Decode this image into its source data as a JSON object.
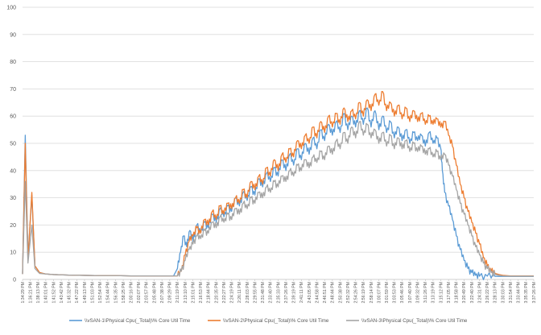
{
  "chart_data": {
    "type": "line",
    "grid": true,
    "ylim": [
      0,
      100
    ],
    "yticks": [
      0,
      10,
      20,
      30,
      40,
      50,
      60,
      70,
      80,
      90,
      100
    ],
    "legend_position": "bottom",
    "x_tick_labels": [
      "1:34:29 PM",
      "1:36:21 PM",
      "1:38:13 PM",
      "1:40:01 PM",
      "1:41:52 PM",
      "1:43:42 PM",
      "1:45:32 PM",
      "1:47:22 PM",
      "1:49:13 PM",
      "1:51:03 PM",
      "1:52:54 PM",
      "1:54:44 PM",
      "1:56:35 PM",
      "1:58:25 PM",
      "2:00:16 PM",
      "2:02:07 PM",
      "2:03:57 PM",
      "2:05:48 PM",
      "2:07:38 PM",
      "2:09:29 PM",
      "2:11:19 PM",
      "2:13:10 PM",
      "2:15:01 PM",
      "2:16:53 PM",
      "2:18:44 PM",
      "2:20:35 PM",
      "2:22:27 PM",
      "2:24:19 PM",
      "2:26:11 PM",
      "2:28:03 PM",
      "2:29:55 PM",
      "2:31:48 PM",
      "2:33:40 PM",
      "2:35:33 PM",
      "2:37:26 PM",
      "2:39:19 PM",
      "2:41:11 PM",
      "2:43:05 PM",
      "2:44:58 PM",
      "2:46:51 PM",
      "2:48:44 PM",
      "2:50:38 PM",
      "2:52:32 PM",
      "2:54:26 PM",
      "2:56:19 PM",
      "2:58:14 PM",
      "3:00:07 PM",
      "3:01:59 PM",
      "3:03:53 PM",
      "3:05:46 PM",
      "3:07:40 PM",
      "3:09:32 PM",
      "3:11:26 PM",
      "3:13:19 PM",
      "3:15:12 PM",
      "3:17:05 PM",
      "3:18:58 PM",
      "3:20:49 PM",
      "3:22:40 PM",
      "3:24:31 PM",
      "3:26:22 PM",
      "3:28:13 PM",
      "3:30:03 PM",
      "3:31:54 PM",
      "3:33:44 PM",
      "3:35:35 PM",
      "3:37:26 PM"
    ],
    "series": [
      {
        "name": "\\\\vSAN-1\\Physical Cpu(_Total)\\% Core Util Time",
        "color": "#5B9BD5",
        "points": [
          [
            0,
            2
          ],
          [
            0.35,
            53
          ],
          [
            0.7,
            8
          ],
          [
            1.2,
            31
          ],
          [
            1.6,
            5
          ],
          [
            2.2,
            2.5
          ],
          [
            3,
            2
          ],
          [
            4,
            1.8
          ],
          [
            6,
            1.6
          ],
          [
            8,
            1.5
          ],
          [
            10,
            1.4
          ],
          [
            12,
            1.4
          ],
          [
            14,
            1.3
          ],
          [
            16,
            1.3
          ],
          [
            18,
            1.3
          ],
          [
            19.5,
            1.3
          ],
          [
            20,
            4
          ],
          [
            20.4,
            10
          ],
          [
            20.8,
            16
          ],
          [
            21.2,
            12
          ],
          [
            21.6,
            18
          ],
          [
            22,
            14
          ],
          [
            22.5,
            20
          ],
          [
            23,
            17
          ],
          [
            23.5,
            21
          ],
          [
            24,
            19
          ],
          [
            24.5,
            24
          ],
          [
            25,
            21
          ],
          [
            25.5,
            26
          ],
          [
            26,
            23
          ],
          [
            26.5,
            27
          ],
          [
            27,
            25
          ],
          [
            27.5,
            30
          ],
          [
            28,
            27
          ],
          [
            28.5,
            32
          ],
          [
            29,
            29
          ],
          [
            29.5,
            34
          ],
          [
            30,
            31
          ],
          [
            30.5,
            37
          ],
          [
            31,
            34
          ],
          [
            31.5,
            39
          ],
          [
            32,
            36
          ],
          [
            32.5,
            41
          ],
          [
            33,
            38
          ],
          [
            33.5,
            44
          ],
          [
            34,
            40
          ],
          [
            34.5,
            46
          ],
          [
            35,
            42
          ],
          [
            35.5,
            48
          ],
          [
            36,
            44
          ],
          [
            36.5,
            50
          ],
          [
            37,
            46
          ],
          [
            37.5,
            52
          ],
          [
            38,
            48
          ],
          [
            38.5,
            55
          ],
          [
            39,
            51
          ],
          [
            39.5,
            57
          ],
          [
            40,
            53
          ],
          [
            40.5,
            58
          ],
          [
            41,
            54
          ],
          [
            41.5,
            61
          ],
          [
            42,
            55
          ],
          [
            42.5,
            60
          ],
          [
            43,
            56
          ],
          [
            43.5,
            62
          ],
          [
            44,
            57
          ],
          [
            44.5,
            63
          ],
          [
            45,
            56
          ],
          [
            45.5,
            62
          ],
          [
            46,
            55
          ],
          [
            46.5,
            60
          ],
          [
            47,
            54
          ],
          [
            47.5,
            58
          ],
          [
            48,
            52
          ],
          [
            48.5,
            56
          ],
          [
            49,
            51
          ],
          [
            49.5,
            55
          ],
          [
            50,
            50
          ],
          [
            50.5,
            54
          ],
          [
            51,
            51
          ],
          [
            51.5,
            53
          ],
          [
            52,
            49
          ],
          [
            52.5,
            54
          ],
          [
            53,
            50
          ],
          [
            53.5,
            52
          ],
          [
            54,
            48
          ],
          [
            54.2,
            40
          ],
          [
            54.5,
            32
          ],
          [
            55,
            27
          ],
          [
            55.5,
            22
          ],
          [
            56,
            16
          ],
          [
            56.5,
            11
          ],
          [
            57,
            7
          ],
          [
            57.5,
            4
          ],
          [
            58,
            2.5
          ],
          [
            58.5,
            1.5
          ],
          [
            59,
            1.2
          ],
          [
            60,
            1.2
          ],
          [
            61,
            1.1
          ],
          [
            62,
            1.1
          ],
          [
            63,
            1.1
          ],
          [
            64,
            1.1
          ],
          [
            65,
            1.1
          ],
          [
            66,
            1.1
          ]
        ]
      },
      {
        "name": "\\\\vSAN-2\\Physical Cpu(_Total)\\% Core Util Time",
        "color": "#ED7D31",
        "points": [
          [
            0,
            2
          ],
          [
            0.35,
            50
          ],
          [
            0.7,
            7
          ],
          [
            1.2,
            32
          ],
          [
            1.6,
            5
          ],
          [
            2.2,
            2.5
          ],
          [
            3,
            2
          ],
          [
            4,
            1.8
          ],
          [
            6,
            1.6
          ],
          [
            8,
            1.5
          ],
          [
            10,
            1.4
          ],
          [
            12,
            1.4
          ],
          [
            14,
            1.3
          ],
          [
            16,
            1.3
          ],
          [
            18,
            1.3
          ],
          [
            20,
            1.3
          ],
          [
            20.5,
            3
          ],
          [
            21,
            9
          ],
          [
            21.5,
            14
          ],
          [
            22,
            16
          ],
          [
            22.5,
            19
          ],
          [
            23,
            17
          ],
          [
            23.5,
            22
          ],
          [
            24,
            20
          ],
          [
            24.5,
            25
          ],
          [
            25,
            22
          ],
          [
            25.5,
            27
          ],
          [
            26,
            24
          ],
          [
            26.5,
            28
          ],
          [
            27,
            26
          ],
          [
            27.5,
            30
          ],
          [
            28,
            28
          ],
          [
            28.5,
            33
          ],
          [
            29,
            30
          ],
          [
            29.5,
            36
          ],
          [
            30,
            33
          ],
          [
            30.5,
            38
          ],
          [
            31,
            35
          ],
          [
            31.5,
            41
          ],
          [
            32,
            38
          ],
          [
            32.5,
            44
          ],
          [
            33,
            40
          ],
          [
            33.5,
            46
          ],
          [
            34,
            43
          ],
          [
            34.5,
            48
          ],
          [
            35,
            45
          ],
          [
            35.5,
            51
          ],
          [
            36,
            48
          ],
          [
            36.5,
            53
          ],
          [
            37,
            50
          ],
          [
            37.5,
            56
          ],
          [
            38,
            52
          ],
          [
            38.5,
            58
          ],
          [
            39,
            54
          ],
          [
            39.5,
            60
          ],
          [
            40,
            56
          ],
          [
            40.5,
            61
          ],
          [
            41,
            57
          ],
          [
            41.5,
            63
          ],
          [
            42,
            58
          ],
          [
            42.5,
            62
          ],
          [
            43,
            59
          ],
          [
            43.5,
            65
          ],
          [
            44,
            60
          ],
          [
            44.5,
            66
          ],
          [
            45,
            62
          ],
          [
            45.5,
            68
          ],
          [
            46,
            64
          ],
          [
            46.5,
            69
          ],
          [
            47,
            62
          ],
          [
            47.5,
            65
          ],
          [
            48,
            60
          ],
          [
            48.5,
            64
          ],
          [
            49,
            59
          ],
          [
            49.5,
            63
          ],
          [
            50,
            58
          ],
          [
            50.5,
            62
          ],
          [
            51,
            58
          ],
          [
            51.5,
            61
          ],
          [
            52,
            57
          ],
          [
            52.5,
            60
          ],
          [
            53,
            57
          ],
          [
            53.5,
            59
          ],
          [
            54,
            56
          ],
          [
            54.5,
            58
          ],
          [
            55,
            53
          ],
          [
            55.5,
            49
          ],
          [
            56,
            42
          ],
          [
            56.5,
            35
          ],
          [
            57,
            30
          ],
          [
            57.5,
            25
          ],
          [
            58,
            21
          ],
          [
            58.5,
            17
          ],
          [
            59,
            13
          ],
          [
            59.5,
            8
          ],
          [
            60,
            5
          ],
          [
            60.5,
            3
          ],
          [
            61,
            2.2
          ],
          [
            61.5,
            1.8
          ],
          [
            62,
            1.5
          ],
          [
            63,
            1.3
          ],
          [
            64,
            1.3
          ],
          [
            65,
            1.3
          ],
          [
            66,
            1.3
          ]
        ]
      },
      {
        "name": "\\\\vSAN-3\\Physical Cpu(_Total)\\% Core Util Time",
        "color": "#A5A5A5",
        "points": [
          [
            0,
            2
          ],
          [
            0.35,
            36
          ],
          [
            0.7,
            6
          ],
          [
            1.2,
            20
          ],
          [
            1.6,
            4
          ],
          [
            2.2,
            2.2
          ],
          [
            3,
            2
          ],
          [
            4,
            1.8
          ],
          [
            6,
            1.6
          ],
          [
            8,
            1.5
          ],
          [
            10,
            1.4
          ],
          [
            12,
            1.4
          ],
          [
            14,
            1.3
          ],
          [
            16,
            1.3
          ],
          [
            18,
            1.3
          ],
          [
            20,
            1.3
          ],
          [
            20.5,
            3
          ],
          [
            21,
            7
          ],
          [
            21.5,
            11
          ],
          [
            22,
            13
          ],
          [
            22.5,
            16
          ],
          [
            23,
            15
          ],
          [
            23.5,
            18
          ],
          [
            24,
            17
          ],
          [
            24.5,
            21
          ],
          [
            25,
            19
          ],
          [
            25.5,
            23
          ],
          [
            26,
            21
          ],
          [
            26.5,
            24
          ],
          [
            27,
            22
          ],
          [
            27.5,
            26
          ],
          [
            28,
            24
          ],
          [
            28.5,
            28
          ],
          [
            29,
            26
          ],
          [
            29.5,
            30
          ],
          [
            30,
            28
          ],
          [
            30.5,
            32
          ],
          [
            31,
            30
          ],
          [
            31.5,
            34
          ],
          [
            32,
            32
          ],
          [
            32.5,
            36
          ],
          [
            33,
            34
          ],
          [
            33.5,
            38
          ],
          [
            34,
            36
          ],
          [
            34.5,
            40
          ],
          [
            35,
            38
          ],
          [
            35.5,
            42
          ],
          [
            36,
            40
          ],
          [
            36.5,
            44
          ],
          [
            37,
            41
          ],
          [
            37.5,
            45
          ],
          [
            38,
            43
          ],
          [
            38.5,
            47
          ],
          [
            39,
            44
          ],
          [
            39.5,
            49
          ],
          [
            40,
            46
          ],
          [
            40.5,
            51
          ],
          [
            41,
            48
          ],
          [
            41.5,
            54
          ],
          [
            42,
            50
          ],
          [
            42.5,
            56
          ],
          [
            43,
            52
          ],
          [
            43.5,
            58
          ],
          [
            44,
            53
          ],
          [
            44.5,
            57
          ],
          [
            45,
            52
          ],
          [
            45.5,
            55
          ],
          [
            46,
            50
          ],
          [
            46.5,
            54
          ],
          [
            47,
            49
          ],
          [
            47.5,
            53
          ],
          [
            48,
            48
          ],
          [
            48.5,
            52
          ],
          [
            49,
            48
          ],
          [
            49.5,
            51
          ],
          [
            50,
            47
          ],
          [
            50.5,
            50
          ],
          [
            51,
            47
          ],
          [
            51.5,
            49
          ],
          [
            52,
            46
          ],
          [
            52.5,
            48
          ],
          [
            53,
            45
          ],
          [
            53.5,
            47
          ],
          [
            54,
            44
          ],
          [
            54.5,
            46
          ],
          [
            55,
            42
          ],
          [
            55.5,
            38
          ],
          [
            56,
            33
          ],
          [
            56.5,
            28
          ],
          [
            57,
            24
          ],
          [
            57.5,
            20
          ],
          [
            58,
            16
          ],
          [
            58.5,
            12
          ],
          [
            59,
            9
          ],
          [
            59.5,
            6
          ],
          [
            60,
            4
          ],
          [
            60.5,
            2.5
          ],
          [
            61,
            1.8
          ],
          [
            61.5,
            1.5
          ],
          [
            62,
            1.3
          ],
          [
            63,
            1.2
          ],
          [
            64,
            1.2
          ],
          [
            65,
            1.2
          ],
          [
            66,
            1.2
          ]
        ]
      }
    ]
  }
}
